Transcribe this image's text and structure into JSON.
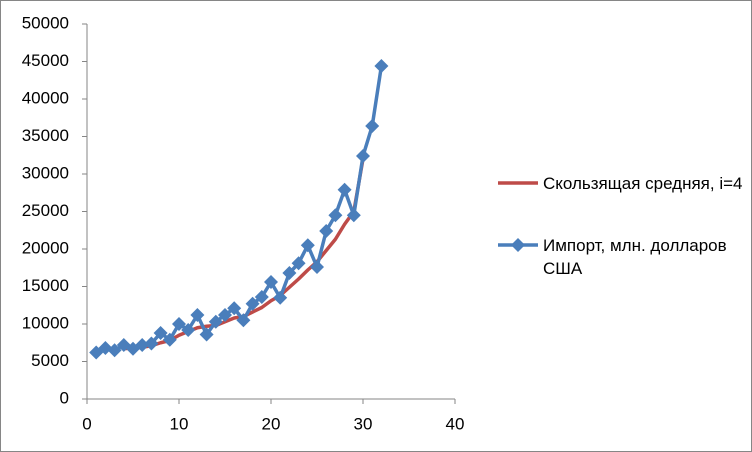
{
  "chart_data": {
    "type": "line",
    "xlim": [
      0,
      40
    ],
    "xticks": [
      0,
      10,
      20,
      30,
      40
    ],
    "ylim": [
      0,
      50000
    ],
    "yticks": [
      0,
      5000,
      10000,
      15000,
      20000,
      25000,
      30000,
      35000,
      40000,
      45000,
      50000
    ],
    "grid": false,
    "legend": "right",
    "series": [
      {
        "name": "Скользящая средняя, i=4",
        "color": "#be4b48",
        "marker": false,
        "x": [
          4,
          5,
          6,
          7,
          8,
          9,
          10,
          11,
          12,
          13,
          14,
          15,
          16,
          17,
          18,
          19,
          20,
          21,
          22,
          23,
          24,
          25,
          26,
          27,
          28,
          29,
          30
        ],
        "values": [
          6700,
          6800,
          6900,
          7100,
          7500,
          7800,
          8500,
          9000,
          9500,
          9700,
          9800,
          10300,
          10800,
          11000,
          11600,
          12200,
          13100,
          13800,
          14900,
          16000,
          17200,
          18300,
          19800,
          21300,
          23300,
          25000,
          32000
        ]
      },
      {
        "name": "Импорт, млн. долларов США",
        "color": "#4a7ebb",
        "marker": true,
        "x": [
          1,
          2,
          3,
          4,
          5,
          6,
          7,
          8,
          9,
          10,
          11,
          12,
          13,
          14,
          15,
          16,
          17,
          18,
          19,
          20,
          21,
          22,
          23,
          24,
          25,
          26,
          27,
          28,
          29,
          30,
          31,
          32
        ],
        "values": [
          6200,
          6800,
          6500,
          7200,
          6700,
          7200,
          7400,
          8800,
          7900,
          10000,
          9200,
          11200,
          8600,
          10300,
          11200,
          12100,
          10500,
          12700,
          13600,
          15600,
          13500,
          16800,
          18100,
          20500,
          17600,
          22400,
          24500,
          27900,
          24500,
          32400,
          36400,
          44400
        ]
      }
    ]
  }
}
